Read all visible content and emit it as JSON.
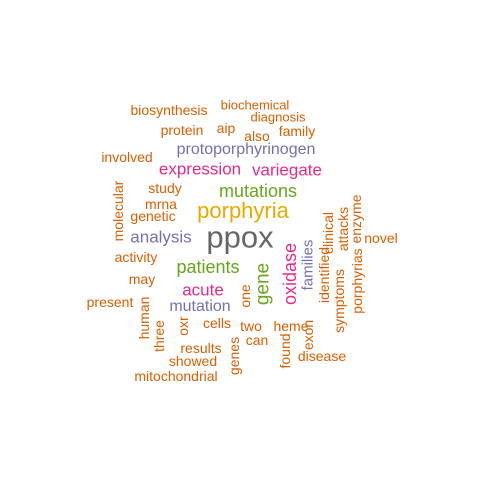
{
  "palette": {
    "orange": "#d95f02",
    "purple": "#7570b3",
    "magenta": "#e7298a",
    "green": "#66a61e",
    "gold": "#e6ab02",
    "gray": "#666666"
  },
  "word_cloud": {
    "words": [
      {
        "text": "ppox",
        "color": "gray",
        "orientation": "horizontal"
      },
      {
        "text": "porphyria",
        "color": "gold",
        "orientation": "horizontal"
      },
      {
        "text": "mutations",
        "color": "green",
        "orientation": "horizontal"
      },
      {
        "text": "patients",
        "color": "green",
        "orientation": "horizontal"
      },
      {
        "text": "expression",
        "color": "magenta",
        "orientation": "horizontal"
      },
      {
        "text": "variegate",
        "color": "magenta",
        "orientation": "horizontal"
      },
      {
        "text": "acute",
        "color": "magenta",
        "orientation": "horizontal"
      },
      {
        "text": "gene",
        "color": "green",
        "orientation": "vertical"
      },
      {
        "text": "oxidase",
        "color": "magenta",
        "orientation": "vertical"
      },
      {
        "text": "protoporphyrinogen",
        "color": "purple",
        "orientation": "horizontal"
      },
      {
        "text": "analysis",
        "color": "purple",
        "orientation": "horizontal"
      },
      {
        "text": "mutation",
        "color": "purple",
        "orientation": "horizontal"
      },
      {
        "text": "families",
        "color": "purple",
        "orientation": "vertical"
      },
      {
        "text": "biosynthesis",
        "color": "orange",
        "orientation": "horizontal"
      },
      {
        "text": "biochemical",
        "color": "orange",
        "orientation": "horizontal"
      },
      {
        "text": "diagnosis",
        "color": "orange",
        "orientation": "horizontal"
      },
      {
        "text": "protein",
        "color": "orange",
        "orientation": "horizontal"
      },
      {
        "text": "aip",
        "color": "orange",
        "orientation": "horizontal"
      },
      {
        "text": "also",
        "color": "orange",
        "orientation": "horizontal"
      },
      {
        "text": "family",
        "color": "orange",
        "orientation": "horizontal"
      },
      {
        "text": "involved",
        "color": "orange",
        "orientation": "horizontal"
      },
      {
        "text": "study",
        "color": "orange",
        "orientation": "horizontal"
      },
      {
        "text": "mrna",
        "color": "orange",
        "orientation": "horizontal"
      },
      {
        "text": "genetic",
        "color": "orange",
        "orientation": "horizontal"
      },
      {
        "text": "molecular",
        "color": "orange",
        "orientation": "vertical"
      },
      {
        "text": "activity",
        "color": "orange",
        "orientation": "horizontal"
      },
      {
        "text": "may",
        "color": "orange",
        "orientation": "horizontal"
      },
      {
        "text": "present",
        "color": "orange",
        "orientation": "horizontal"
      },
      {
        "text": "human",
        "color": "orange",
        "orientation": "vertical"
      },
      {
        "text": "three",
        "color": "orange",
        "orientation": "vertical"
      },
      {
        "text": "oxr",
        "color": "orange",
        "orientation": "vertical"
      },
      {
        "text": "cells",
        "color": "orange",
        "orientation": "horizontal"
      },
      {
        "text": "one",
        "color": "orange",
        "orientation": "vertical"
      },
      {
        "text": "two",
        "color": "orange",
        "orientation": "horizontal"
      },
      {
        "text": "heme",
        "color": "orange",
        "orientation": "horizontal"
      },
      {
        "text": "can",
        "color": "orange",
        "orientation": "horizontal"
      },
      {
        "text": "results",
        "color": "orange",
        "orientation": "horizontal"
      },
      {
        "text": "showed",
        "color": "orange",
        "orientation": "horizontal"
      },
      {
        "text": "genes",
        "color": "orange",
        "orientation": "vertical"
      },
      {
        "text": "mitochondrial",
        "color": "orange",
        "orientation": "horizontal"
      },
      {
        "text": "found",
        "color": "orange",
        "orientation": "vertical"
      },
      {
        "text": "exon",
        "color": "orange",
        "orientation": "vertical"
      },
      {
        "text": "identified",
        "color": "orange",
        "orientation": "vertical"
      },
      {
        "text": "clinical",
        "color": "orange",
        "orientation": "vertical"
      },
      {
        "text": "attacks",
        "color": "orange",
        "orientation": "vertical"
      },
      {
        "text": "enzyme",
        "color": "orange",
        "orientation": "vertical"
      },
      {
        "text": "symptoms",
        "color": "orange",
        "orientation": "vertical"
      },
      {
        "text": "porphyrias",
        "color": "orange",
        "orientation": "vertical"
      },
      {
        "text": "novel",
        "color": "orange",
        "orientation": "horizontal"
      },
      {
        "text": "disease",
        "color": "orange",
        "orientation": "horizontal"
      }
    ]
  }
}
